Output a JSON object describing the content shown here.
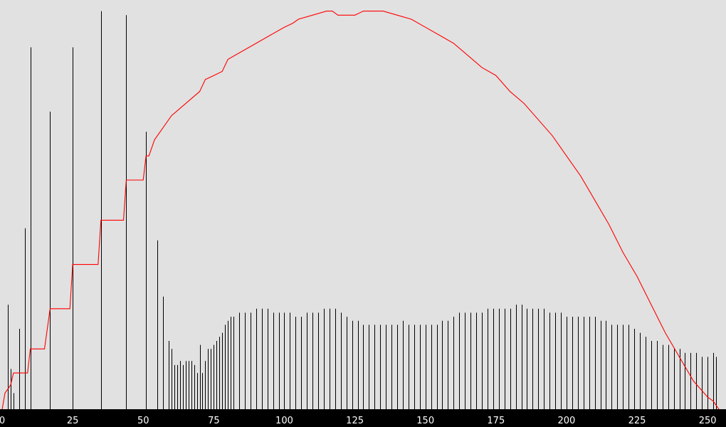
{
  "chart_data": {
    "type": "bar",
    "title": "",
    "xlabel": "",
    "ylabel": "",
    "xlim": [
      0,
      255
    ],
    "ylim": [
      0,
      1
    ],
    "grid": false,
    "xticks": [
      "0",
      "25",
      "50",
      "75",
      "100",
      "125",
      "150",
      "175",
      "200",
      "225",
      "250"
    ],
    "colors": {
      "background": "#e1e1e1",
      "bars": "#000000",
      "curve": "#ff0000",
      "axis_band": "#000000",
      "tick_text": "#ffffff"
    },
    "histogram": {
      "description_kind": "relative frequency per intensity level",
      "x": [
        2,
        3,
        4,
        6,
        8,
        10,
        17,
        25,
        35,
        44,
        51,
        55,
        57,
        59,
        60,
        61,
        62,
        63,
        64,
        65,
        66,
        67,
        68,
        69,
        70,
        71,
        72,
        73,
        74,
        75,
        76,
        77,
        78,
        79,
        80,
        81,
        82,
        84,
        86,
        88,
        90,
        92,
        94,
        96,
        98,
        100,
        102,
        104,
        106,
        108,
        110,
        112,
        114,
        116,
        118,
        120,
        122,
        124,
        126,
        128,
        130,
        132,
        134,
        136,
        138,
        140,
        142,
        144,
        146,
        148,
        150,
        152,
        154,
        156,
        158,
        160,
        162,
        164,
        166,
        168,
        170,
        172,
        174,
        176,
        178,
        180,
        182,
        184,
        186,
        188,
        190,
        192,
        194,
        196,
        198,
        200,
        202,
        204,
        206,
        208,
        210,
        212,
        214,
        216,
        218,
        220,
        222,
        224,
        226,
        228,
        230,
        232,
        234,
        236,
        238,
        240,
        242,
        244,
        246,
        248,
        250,
        252,
        253
      ],
      "values": [
        0.26,
        0.1,
        0.04,
        0.2,
        0.45,
        0.9,
        0.74,
        0.9,
        0.99,
        0.98,
        0.69,
        0.42,
        0.28,
        0.17,
        0.15,
        0.11,
        0.11,
        0.12,
        0.11,
        0.12,
        0.12,
        0.12,
        0.11,
        0.09,
        0.16,
        0.09,
        0.12,
        0.15,
        0.15,
        0.16,
        0.17,
        0.18,
        0.19,
        0.21,
        0.22,
        0.23,
        0.23,
        0.24,
        0.24,
        0.24,
        0.25,
        0.25,
        0.25,
        0.24,
        0.24,
        0.24,
        0.24,
        0.23,
        0.23,
        0.24,
        0.24,
        0.24,
        0.25,
        0.25,
        0.25,
        0.24,
        0.23,
        0.22,
        0.22,
        0.21,
        0.21,
        0.21,
        0.21,
        0.21,
        0.21,
        0.21,
        0.22,
        0.21,
        0.21,
        0.21,
        0.21,
        0.21,
        0.21,
        0.22,
        0.22,
        0.23,
        0.24,
        0.24,
        0.24,
        0.24,
        0.24,
        0.25,
        0.25,
        0.25,
        0.25,
        0.25,
        0.26,
        0.26,
        0.25,
        0.25,
        0.25,
        0.25,
        0.24,
        0.24,
        0.24,
        0.23,
        0.23,
        0.23,
        0.23,
        0.23,
        0.23,
        0.22,
        0.22,
        0.21,
        0.21,
        0.21,
        0.21,
        0.2,
        0.19,
        0.18,
        0.17,
        0.17,
        0.16,
        0.16,
        0.15,
        0.15,
        0.14,
        0.14,
        0.14,
        0.13,
        0.13,
        0.14,
        0.13
      ]
    },
    "cumulative_curve": {
      "x": [
        0,
        1,
        2,
        3,
        4,
        5,
        6,
        7,
        8,
        9,
        10,
        15,
        17,
        24,
        25,
        34,
        35,
        43,
        44,
        50,
        51,
        52,
        54,
        56,
        60,
        65,
        70,
        72,
        75,
        78,
        80,
        85,
        90,
        95,
        100,
        103,
        105,
        110,
        115,
        117,
        119,
        125,
        128,
        130,
        135,
        140,
        145,
        150,
        155,
        160,
        165,
        170,
        175,
        180,
        185,
        190,
        195,
        200,
        205,
        210,
        215,
        220,
        225,
        230,
        235,
        240,
        245,
        250,
        252,
        253,
        254
      ],
      "values": [
        0.0,
        0.04,
        0.05,
        0.06,
        0.09,
        0.09,
        0.09,
        0.09,
        0.09,
        0.09,
        0.15,
        0.15,
        0.25,
        0.25,
        0.36,
        0.36,
        0.47,
        0.47,
        0.57,
        0.57,
        0.63,
        0.63,
        0.67,
        0.69,
        0.73,
        0.76,
        0.79,
        0.82,
        0.83,
        0.84,
        0.87,
        0.89,
        0.91,
        0.93,
        0.95,
        0.96,
        0.97,
        0.98,
        0.99,
        0.99,
        0.98,
        0.98,
        0.99,
        0.99,
        0.99,
        0.98,
        0.97,
        0.95,
        0.93,
        0.91,
        0.88,
        0.85,
        0.83,
        0.79,
        0.76,
        0.72,
        0.68,
        0.63,
        0.58,
        0.52,
        0.46,
        0.39,
        0.33,
        0.26,
        0.19,
        0.13,
        0.07,
        0.03,
        0.02,
        0.01,
        0.0
      ]
    }
  }
}
